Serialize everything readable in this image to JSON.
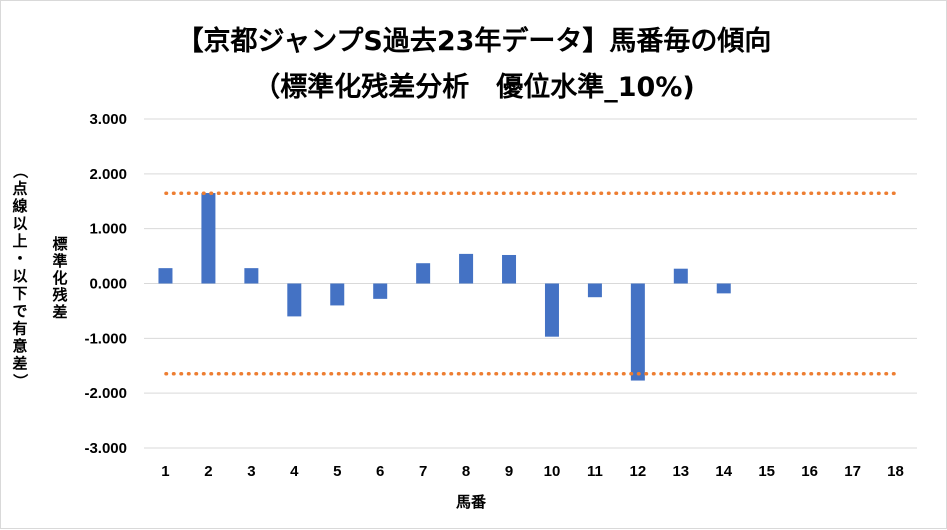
{
  "chart_data": {
    "type": "bar",
    "title": "【京都ジャンプS過去23年データ】馬番毎の傾向",
    "subtitle": "（標準化残差分析　優位水準_10%)",
    "xlabel": "馬番",
    "ylabel_main": "標準化残差",
    "ylabel_note": "（点線以上・以下で有意差）",
    "categories": [
      "1",
      "2",
      "3",
      "4",
      "5",
      "6",
      "7",
      "8",
      "9",
      "10",
      "11",
      "12",
      "13",
      "14",
      "15",
      "16",
      "17",
      "18"
    ],
    "series": [
      {
        "values": [
          0.28,
          1.65,
          0.28,
          -0.6,
          -0.4,
          -0.28,
          0.37,
          0.54,
          0.52,
          -0.97,
          -0.25,
          -1.77,
          0.27,
          -0.18,
          null,
          null,
          null,
          null
        ],
        "color": "#4472c4"
      }
    ],
    "reference_lines": [
      1.645,
      -1.645
    ],
    "reference_line_color": "#ed7d31",
    "ylim": [
      -3,
      3
    ],
    "yticks": [
      3,
      2,
      1,
      0,
      -1,
      -2,
      -3
    ],
    "ytick_labels": [
      "3.000",
      "2.000",
      "1.000",
      "0.000",
      "-1.000",
      "-2.000",
      "-3.000"
    ],
    "grid": "horizontal",
    "grid_color": "#d9d9d9",
    "legend": "none"
  }
}
